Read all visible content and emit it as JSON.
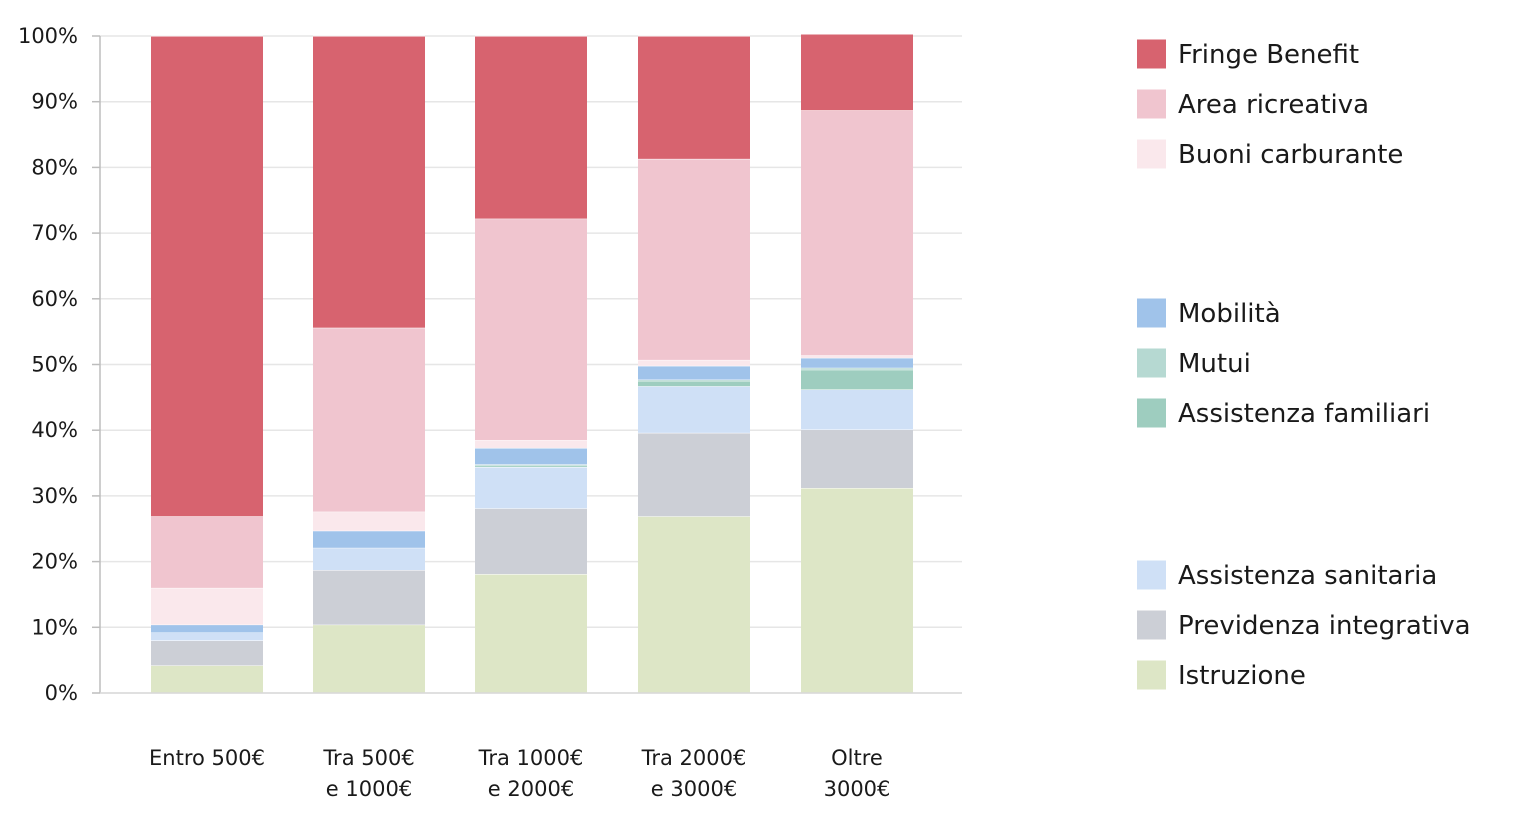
{
  "chart_data": {
    "type": "bar",
    "stacked": true,
    "title": "",
    "xlabel": "",
    "ylabel": "",
    "ylim": [
      0,
      100
    ],
    "yticks": [
      "0%",
      "10%",
      "20%",
      "30%",
      "40%",
      "50%",
      "60%",
      "70%",
      "80%",
      "90%",
      "100%"
    ],
    "grid": true,
    "legend_position": "right",
    "categories": [
      [
        "Entro 500€"
      ],
      [
        "Tra 500€",
        "e 1000€"
      ],
      [
        "Tra 1000€",
        "e 2000€"
      ],
      [
        "Tra 2000€",
        "e 3000€"
      ],
      [
        "Oltre",
        "3000€"
      ]
    ],
    "series": [
      {
        "name": "Istruzione",
        "color": "#dde6c6",
        "values": [
          4.2,
          10.4,
          18.1,
          26.9,
          31.2
        ]
      },
      {
        "name": "Previdenza integrativa",
        "color": "#cccfd6",
        "values": [
          3.8,
          8.3,
          10.0,
          12.7,
          8.9
        ]
      },
      {
        "name": "Assistenza sanitaria",
        "color": "#cfe0f6",
        "values": [
          1.2,
          3.4,
          6.3,
          7.1,
          6.1
        ]
      },
      {
        "name": "Assistenza familiari",
        "color": "#9ecdbf",
        "values": [
          0.0,
          0.0,
          0.2,
          0.8,
          3.0
        ]
      },
      {
        "name": "Mutui",
        "color": "#b6d9d2",
        "values": [
          0.0,
          0.0,
          0.2,
          0.2,
          0.3
        ]
      },
      {
        "name": "Mobilità",
        "color": "#a0c3ea",
        "values": [
          1.2,
          2.6,
          2.5,
          2.1,
          1.5
        ]
      },
      {
        "name": "Buoni carburante",
        "color": "#fae8ec",
        "values": [
          5.6,
          2.9,
          1.2,
          0.9,
          0.4
        ]
      },
      {
        "name": "Area ricreativa",
        "color": "#f0c5cf",
        "values": [
          10.9,
          28.0,
          33.7,
          30.6,
          37.3
        ]
      },
      {
        "name": "Fringe Benefit",
        "color": "#d7636f",
        "values": [
          73.1,
          44.4,
          27.8,
          18.7,
          11.6
        ]
      }
    ],
    "legend_groups": [
      [
        "Fringe Benefit",
        "Area ricreativa",
        "Buoni carburante"
      ],
      [
        "Mobilità",
        "Mutui",
        "Assistenza familiari"
      ],
      [
        "Assistenza sanitaria",
        "Previdenza integrativa",
        "Istruzione"
      ]
    ]
  }
}
